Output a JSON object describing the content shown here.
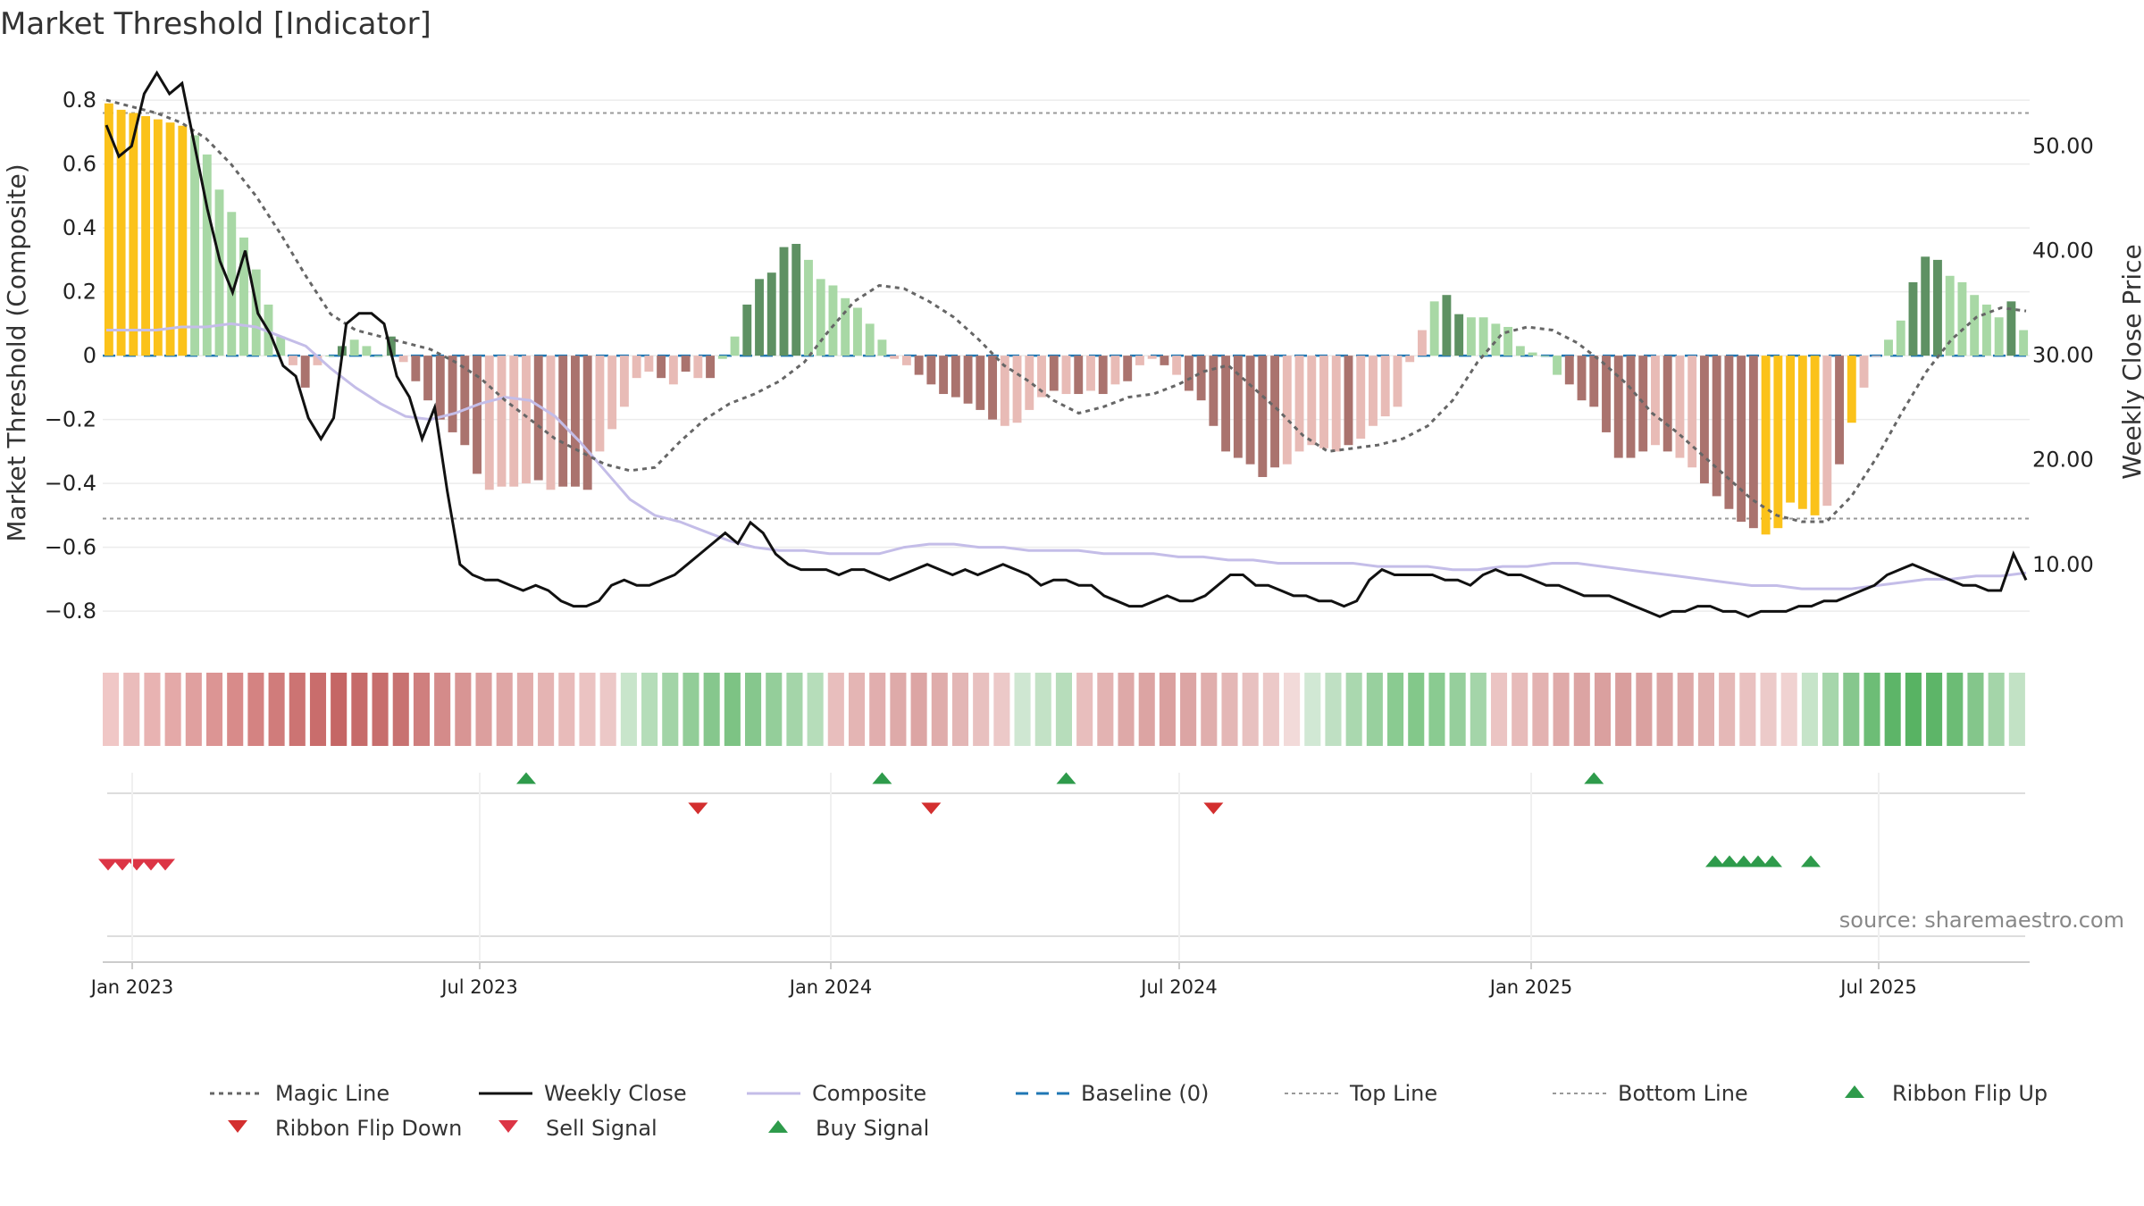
{
  "title": "Market Threshold [Indicator]",
  "source": "source: sharemaestro.com",
  "chart_data": {
    "type": "bar",
    "ylabel_left": "Market Threshold (Composite)",
    "ylabel_right": "Weekly Close Price",
    "ylim_left": [
      -0.85,
      0.82
    ],
    "ylim_right": [
      4,
      55
    ],
    "yticks_left": [
      "0.8",
      "0.6",
      "0.4",
      "0.2",
      "0",
      "−0.2",
      "−0.4",
      "−0.6",
      "−0.8"
    ],
    "yticks_right": [
      "50.00",
      "40.00",
      "30.00",
      "20.00",
      "10.00"
    ],
    "x_ticks": [
      "Jan 2023",
      "Jul 2023",
      "Jan 2024",
      "Jul 2024",
      "Jan 2025",
      "Jul 2025"
    ],
    "top_line": 0.76,
    "bottom_line": -0.51,
    "baseline": 0,
    "histogram": [
      0.79,
      0.77,
      0.76,
      0.75,
      0.74,
      0.73,
      0.72,
      0.69,
      0.63,
      0.52,
      0.45,
      0.37,
      0.27,
      0.16,
      0.06,
      -0.03,
      -0.1,
      -0.03,
      0.0,
      0.03,
      0.05,
      0.03,
      0.0,
      0.06,
      -0.02,
      -0.08,
      -0.14,
      -0.2,
      -0.24,
      -0.28,
      -0.37,
      -0.42,
      -0.41,
      -0.41,
      -0.4,
      -0.39,
      -0.42,
      -0.41,
      -0.41,
      -0.42,
      -0.3,
      -0.23,
      -0.16,
      -0.07,
      -0.05,
      -0.07,
      -0.09,
      -0.05,
      -0.07,
      -0.07,
      -0.01,
      0.06,
      0.16,
      0.24,
      0.26,
      0.34,
      0.35,
      0.3,
      0.24,
      0.22,
      0.18,
      0.15,
      0.1,
      0.05,
      -0.01,
      -0.03,
      -0.06,
      -0.09,
      -0.12,
      -0.13,
      -0.15,
      -0.17,
      -0.2,
      -0.22,
      -0.21,
      -0.17,
      -0.13,
      -0.11,
      -0.12,
      -0.12,
      -0.11,
      -0.12,
      -0.09,
      -0.08,
      -0.03,
      -0.01,
      -0.03,
      -0.06,
      -0.11,
      -0.14,
      -0.22,
      -0.3,
      -0.32,
      -0.34,
      -0.38,
      -0.35,
      -0.34,
      -0.3,
      -0.28,
      -0.29,
      -0.3,
      -0.28,
      -0.26,
      -0.22,
      -0.19,
      -0.16,
      -0.02,
      0.08,
      0.17,
      0.19,
      0.13,
      0.12,
      0.12,
      0.1,
      0.09,
      0.03,
      0.01,
      0.0,
      -0.06,
      -0.09,
      -0.14,
      -0.16,
      -0.24,
      -0.32,
      -0.32,
      -0.3,
      -0.28,
      -0.3,
      -0.32,
      -0.35,
      -0.4,
      -0.44,
      -0.48,
      -0.52,
      -0.54,
      -0.56,
      -0.54,
      -0.46,
      -0.48,
      -0.5,
      -0.47,
      -0.34,
      -0.21,
      -0.1,
      0.0,
      0.05,
      0.11,
      0.23,
      0.31,
      0.3,
      0.25,
      0.23,
      0.19,
      0.16,
      0.12,
      0.17,
      0.08
    ],
    "histogram_colors": [
      "Y",
      "Y",
      "Y",
      "Y",
      "Y",
      "Y",
      "Y",
      "LG",
      "LG",
      "LG",
      "LG",
      "LG",
      "LG",
      "LG",
      "LG",
      "LR",
      "DR",
      "LR",
      "LG",
      "DG",
      "LG",
      "LG",
      "LG",
      "DG",
      "LR",
      "DR",
      "DR",
      "DR",
      "DR",
      "DR",
      "DR",
      "LR",
      "LR",
      "LR",
      "LR",
      "DR",
      "LR",
      "DR",
      "DR",
      "DR",
      "LR",
      "LR",
      "LR",
      "LR",
      "LR",
      "DR",
      "LR",
      "DR",
      "LR",
      "DR",
      "LG",
      "LG",
      "DG",
      "DG",
      "DG",
      "DG",
      "DG",
      "LG",
      "LG",
      "LG",
      "LG",
      "LG",
      "LG",
      "LG",
      "LR",
      "LR",
      "DR",
      "DR",
      "DR",
      "DR",
      "DR",
      "DR",
      "DR",
      "LR",
      "LR",
      "LR",
      "LR",
      "DR",
      "LR",
      "DR",
      "LR",
      "DR",
      "LR",
      "DR",
      "LR",
      "LR",
      "DR",
      "LR",
      "DR",
      "DR",
      "DR",
      "DR",
      "DR",
      "DR",
      "DR",
      "DR",
      "LR",
      "LR",
      "LR",
      "LR",
      "LR",
      "DR",
      "LR",
      "LR",
      "LR",
      "LR",
      "LR",
      "LR",
      "LG",
      "DG",
      "DG",
      "LG",
      "LG",
      "LG",
      "LG",
      "LG",
      "LG",
      "LG",
      "LG",
      "DR",
      "DR",
      "DR",
      "DR",
      "DR",
      "DR",
      "DR",
      "LR",
      "DR",
      "LR",
      "LR",
      "DR",
      "DR",
      "DR",
      "DR",
      "DR",
      "Y",
      "Y",
      "Y",
      "Y",
      "Y",
      "LR",
      "DR",
      "Y",
      "LR",
      "LR",
      "LG",
      "LG",
      "DG",
      "DG",
      "DG",
      "LG",
      "LG",
      "LG",
      "LG",
      "LG",
      "DG",
      "LG"
    ],
    "magic_line": [
      0.8,
      0.78,
      0.76,
      0.73,
      0.68,
      0.6,
      0.5,
      0.38,
      0.25,
      0.13,
      0.08,
      0.06,
      0.04,
      0.02,
      -0.02,
      -0.07,
      -0.14,
      -0.2,
      -0.26,
      -0.3,
      -0.34,
      -0.36,
      -0.35,
      -0.27,
      -0.2,
      -0.15,
      -0.12,
      -0.08,
      -0.02,
      0.08,
      0.17,
      0.22,
      0.21,
      0.17,
      0.12,
      0.05,
      -0.03,
      -0.08,
      -0.14,
      -0.18,
      -0.16,
      -0.13,
      -0.12,
      -0.09,
      -0.05,
      -0.03,
      -0.1,
      -0.17,
      -0.25,
      -0.3,
      -0.29,
      -0.28,
      -0.26,
      -0.22,
      -0.14,
      -0.02,
      0.07,
      0.09,
      0.08,
      0.04,
      -0.02,
      -0.09,
      -0.18,
      -0.24,
      -0.31,
      -0.38,
      -0.45,
      -0.5,
      -0.52,
      -0.52,
      -0.44,
      -0.32,
      -0.18,
      -0.05,
      0.05,
      0.12,
      0.15,
      0.14
    ],
    "weekly_close": [
      52,
      49,
      50,
      55,
      57,
      55,
      56,
      50,
      44,
      39,
      36,
      40,
      34,
      32,
      29,
      28,
      24,
      22,
      24,
      33,
      34,
      34,
      33,
      28,
      26,
      22,
      25,
      17,
      10,
      9,
      8.5,
      8.5,
      8.0,
      7.5,
      8.0,
      7.5,
      6.5,
      6.0,
      6.0,
      6.5,
      8.0,
      8.5,
      8.0,
      8.0,
      8.5,
      9,
      10,
      11,
      12,
      13,
      12,
      14,
      13,
      11,
      10,
      9.5,
      9.5,
      9.5,
      9.0,
      9.5,
      9.5,
      9.0,
      8.5,
      9.0,
      9.5,
      10,
      9.5,
      9.0,
      9.5,
      9.0,
      9.5,
      10,
      9.5,
      9.0,
      8.0,
      8.5,
      8.5,
      8.0,
      8.0,
      7.0,
      6.5,
      6.0,
      6.0,
      6.5,
      7.0,
      6.5,
      6.5,
      7.0,
      8.0,
      9.0,
      9.0,
      8.0,
      8.0,
      7.5,
      7.0,
      7.0,
      6.5,
      6.5,
      6.0,
      6.5,
      8.5,
      9.5,
      9.0,
      9.0,
      9.0,
      9.0,
      8.5,
      8.5,
      8.0,
      9.0,
      9.5,
      9.0,
      9.0,
      8.5,
      8.0,
      8.0,
      7.5,
      7.0,
      7.0,
      7.0,
      6.5,
      6.0,
      5.5,
      5.0,
      5.5,
      5.5,
      6.0,
      6.0,
      5.5,
      5.5,
      5.0,
      5.5,
      5.5,
      5.5,
      6.0,
      6.0,
      6.5,
      6.5,
      7.0,
      7.5,
      8.0,
      9.0,
      9.5,
      10,
      9.5,
      9.0,
      8.5,
      8.0,
      8.0,
      7.5,
      7.5,
      11,
      8.5
    ],
    "composite": [
      0.08,
      0.08,
      0.08,
      0.09,
      0.09,
      0.1,
      0.09,
      0.06,
      0.03,
      -0.04,
      -0.1,
      -0.15,
      -0.19,
      -0.2,
      -0.18,
      -0.15,
      -0.13,
      -0.14,
      -0.19,
      -0.27,
      -0.36,
      -0.45,
      -0.5,
      -0.52,
      -0.55,
      -0.58,
      -0.6,
      -0.61,
      -0.61,
      -0.62,
      -0.62,
      -0.62,
      -0.6,
      -0.59,
      -0.59,
      -0.6,
      -0.6,
      -0.61,
      -0.61,
      -0.61,
      -0.62,
      -0.62,
      -0.62,
      -0.63,
      -0.63,
      -0.64,
      -0.64,
      -0.65,
      -0.65,
      -0.65,
      -0.65,
      -0.66,
      -0.66,
      -0.66,
      -0.67,
      -0.67,
      -0.66,
      -0.66,
      -0.65,
      -0.65,
      -0.66,
      -0.67,
      -0.68,
      -0.69,
      -0.7,
      -0.71,
      -0.72,
      -0.72,
      -0.73,
      -0.73,
      -0.73,
      -0.72,
      -0.71,
      -0.7,
      -0.7,
      -0.69,
      -0.69,
      -0.68
    ],
    "ribbon_colors": [
      "#f0c7c6",
      "#eabcbb",
      "#e8b3b2",
      "#e4a9a8",
      "#e0a09f",
      "#dc9594",
      "#d88b8a",
      "#d48382",
      "#d07c7b",
      "#cc7473",
      "#c96d6c",
      "#c56665",
      "#c66b6a",
      "#c76e6d",
      "#c87271",
      "#cf7f7e",
      "#d48b8a",
      "#d89594",
      "#dc9f9e",
      "#dfa6a5",
      "#e2adac",
      "#e5b4b3",
      "#e8bbba",
      "#ebc3c2",
      "#ecc8c7",
      "#c8e5cb",
      "#b5ddb9",
      "#a2d4a7",
      "#92cd98",
      "#86c78d",
      "#7dc384",
      "#86c78d",
      "#94ce9a",
      "#a4d5a9",
      "#b6ddba",
      "#e8bebd",
      "#e4b5b4",
      "#e1aeae",
      "#deaaa9",
      "#dca5a4",
      "#dfacab",
      "#e3b6b5",
      "#e8c0bf",
      "#ecc9c8",
      "#cfe7d2",
      "#c3e2c6",
      "#b7ddbb",
      "#e8bebd",
      "#e3b3b2",
      "#dea9a8",
      "#dca4a3",
      "#daa09f",
      "#dca5a4",
      "#e0aead",
      "#e4b7b6",
      "#e8c1c0",
      "#ecc9c8",
      "#f2dad9",
      "#d1e8d4",
      "#bfe0c3",
      "#aad8af",
      "#98d09e",
      "#8acb91",
      "#83c88a",
      "#8acb91",
      "#96cf9c",
      "#a4d5a9",
      "#ebc4c3",
      "#e7bbba",
      "#e3b2b1",
      "#dfaaa9",
      "#dca4a3",
      "#daa09f",
      "#d99e9d",
      "#daa1a0",
      "#dca5a4",
      "#dea9a8",
      "#e1b0af",
      "#e5b8b7",
      "#e9c1c0",
      "#eccac9",
      "#f0d2d1",
      "#c6e4c9",
      "#a6d6ab",
      "#86c78d",
      "#6dbd76",
      "#5db568",
      "#58b363",
      "#5db568",
      "#6cbc75",
      "#84c68b",
      "#a4d5a9",
      "#c2e2c5"
    ],
    "ribbon_flip_up": [
      0.5,
      0.75,
      0.44
    ],
    "ribbon_flip_down": [
      0.6
    ],
    "buy_signals_row1_idx": [
      34,
      63,
      78,
      121
    ],
    "sell_signals_row2_idx": [
      48,
      67,
      90
    ],
    "legend": [
      "Magic Line",
      "Weekly Close",
      "Composite",
      "Baseline (0)",
      "Top Line",
      "Bottom Line",
      "Ribbon Flip Up",
      "Ribbon Flip Down",
      "Sell Signal",
      "Buy Signal"
    ],
    "colors": {
      "yellow": "#fbc21a",
      "light_green": "#a8d8a5",
      "dark_green": "#5e9163",
      "light_red": "#e8bbb6",
      "dark_red": "#aa736e",
      "magic": "#666666",
      "close": "#111111",
      "composite": "#c4bde8",
      "baseline": "#1f77b4",
      "limit": "#999999",
      "buy": "#2e9b4b",
      "sell": "#d32f2f"
    }
  }
}
